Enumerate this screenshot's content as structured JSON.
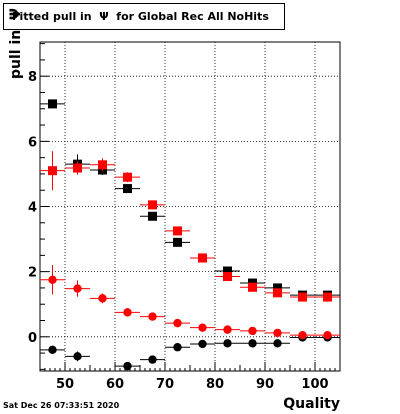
{
  "title": "Fitted pull in  Ψ  for Global Rec All NoHits",
  "timestamp": "Sat Dec 26 07:33:51 2020",
  "colors": {
    "black": "#000000",
    "red": "#ff0000",
    "grid": "#000000"
  },
  "chart_data": {
    "type": "scatter",
    "title": "Fitted pull in  Ψ  for Global Rec All NoHits",
    "xlabel": "Quality",
    "ylabel": "pull in  Ψ",
    "xlim": [
      45,
      105
    ],
    "ylim": [
      -1.05,
      9.05
    ],
    "xticks": [
      50,
      60,
      70,
      80,
      90,
      100
    ],
    "yticks": [
      0,
      2,
      4,
      6,
      8
    ],
    "grid": true,
    "xerr": 2.5,
    "series": [
      {
        "color": "#000000",
        "points": [
          {
            "x": 47.5,
            "y": 7.15,
            "e": 0.05
          },
          {
            "x": 52.5,
            "y": 5.3,
            "e": 0.3
          },
          {
            "x": 57.5,
            "y": 5.12,
            "e": 0.15
          },
          {
            "x": 62.5,
            "y": 4.55,
            "e": 0.1
          },
          {
            "x": 67.5,
            "y": 3.7,
            "e": 0.1
          },
          {
            "x": 72.5,
            "y": 2.9,
            "e": 0.05
          },
          {
            "x": 77.5,
            "y": 2.42,
            "e": 0.05
          },
          {
            "x": 82.5,
            "y": 2.02,
            "e": 0.05
          },
          {
            "x": 87.5,
            "y": 1.65,
            "e": 0.05
          },
          {
            "x": 92.5,
            "y": 1.5,
            "e": 0.05
          },
          {
            "x": 97.5,
            "y": 1.28,
            "e": 0.05
          },
          {
            "x": 102.5,
            "y": 1.28,
            "e": 0.05
          }
        ]
      },
      {
        "color": "#000000",
        "points": [
          {
            "x": 47.5,
            "y": -0.4,
            "e": 0.05
          },
          {
            "x": 52.5,
            "y": -0.6,
            "e": 0.15
          },
          {
            "x": 62.5,
            "y": -0.9,
            "e": 0.05
          },
          {
            "x": 67.5,
            "y": -0.7,
            "e": 0.1
          },
          {
            "x": 72.5,
            "y": -0.32,
            "e": 0.05
          },
          {
            "x": 77.5,
            "y": -0.22,
            "e": 0.05
          },
          {
            "x": 82.5,
            "y": -0.2,
            "e": 0.05
          },
          {
            "x": 87.5,
            "y": -0.2,
            "e": 0.05
          },
          {
            "x": 92.5,
            "y": -0.2,
            "e": 0.05
          },
          {
            "x": 97.5,
            "y": -0.02,
            "e": 0.05
          },
          {
            "x": 102.5,
            "y": -0.02,
            "e": 0.05
          }
        ]
      },
      {
        "color": "#ff0000",
        "points": [
          {
            "x": 47.5,
            "y": 5.1,
            "e": 0.6
          },
          {
            "x": 52.5,
            "y": 5.18,
            "e": 0.2
          },
          {
            "x": 57.5,
            "y": 5.28,
            "e": 0.2
          },
          {
            "x": 62.5,
            "y": 4.9,
            "e": 0.15
          },
          {
            "x": 67.5,
            "y": 4.05,
            "e": 0.1
          },
          {
            "x": 72.5,
            "y": 3.25,
            "e": 0.05
          },
          {
            "x": 77.5,
            "y": 2.42,
            "e": 0.05
          },
          {
            "x": 82.5,
            "y": 1.85,
            "e": 0.05
          },
          {
            "x": 87.5,
            "y": 1.52,
            "e": 0.05
          },
          {
            "x": 92.5,
            "y": 1.35,
            "e": 0.05
          },
          {
            "x": 97.5,
            "y": 1.22,
            "e": 0.05
          },
          {
            "x": 102.5,
            "y": 1.22,
            "e": 0.05
          }
        ]
      },
      {
        "color": "#ff0000",
        "points": [
          {
            "x": 47.5,
            "y": 1.75,
            "e": 0.45
          },
          {
            "x": 52.5,
            "y": 1.48,
            "e": 0.25
          },
          {
            "x": 57.5,
            "y": 1.18,
            "e": 0.15
          },
          {
            "x": 62.5,
            "y": 0.75,
            "e": 0.1
          },
          {
            "x": 67.5,
            "y": 0.62,
            "e": 0.05
          },
          {
            "x": 72.5,
            "y": 0.42,
            "e": 0.05
          },
          {
            "x": 77.5,
            "y": 0.28,
            "e": 0.05
          },
          {
            "x": 82.5,
            "y": 0.22,
            "e": 0.05
          },
          {
            "x": 87.5,
            "y": 0.18,
            "e": 0.05
          },
          {
            "x": 92.5,
            "y": 0.12,
            "e": 0.05
          },
          {
            "x": 97.5,
            "y": 0.05,
            "e": 0.05
          },
          {
            "x": 102.5,
            "y": 0.05,
            "e": 0.05
          }
        ]
      }
    ]
  }
}
